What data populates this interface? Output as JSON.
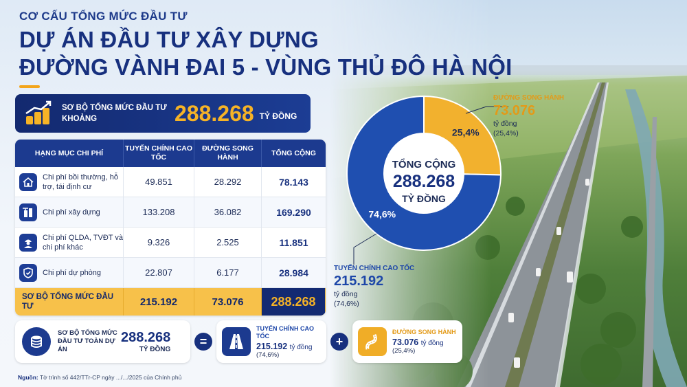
{
  "header": {
    "kicker": "CƠ CẤU TỔNG MỨC ĐẦU TƯ",
    "title_line1": "DỰ ÁN ĐẦU TƯ XÂY DỰNG",
    "title_line2": "ĐƯỜNG VÀNH ĐAI 5 - VÙNG THỦ ĐÔ HÀ NỘI"
  },
  "banner": {
    "label": "SƠ BỘ TỔNG MỨC ĐẦU TƯ KHOẢNG",
    "value": "288.268",
    "unit": "TỶ ĐỒNG"
  },
  "table": {
    "headers": [
      "HẠNG MỤC CHI PHÍ",
      "TUYẾN CHÍNH CAO TỐC",
      "ĐƯỜNG SONG HÀNH",
      "TỔNG CỘNG"
    ],
    "rows": [
      {
        "name": "Chi phí bồi thường, hỗ trợ, tái định cư",
        "main": "49.851",
        "parallel": "28.292",
        "total": "78.143",
        "icon": "house-icon"
      },
      {
        "name": "Chi phí xây dựng",
        "main": "133.208",
        "parallel": "36.082",
        "total": "169.290",
        "icon": "building-icon"
      },
      {
        "name": "Chi phí QLDA, TVĐT và chi phí khác",
        "main": "9.326",
        "parallel": "2.525",
        "total": "11.851",
        "icon": "engineer-icon"
      },
      {
        "name": "Chi phí dự phòng",
        "main": "22.807",
        "parallel": "6.177",
        "total": "28.984",
        "icon": "shield-icon"
      }
    ],
    "footer": {
      "name": "SƠ BỘ TỔNG MỨC ĐẦU TƯ",
      "main": "215.192",
      "parallel": "73.076",
      "total": "288.268"
    }
  },
  "chart_data": {
    "type": "pie",
    "title": "",
    "center_label": {
      "top": "TỔNG CỘNG",
      "value": "288.268",
      "bottom": "TỶ ĐỒNG"
    },
    "categories": [
      "ĐƯỜNG SONG HÀNH",
      "TUYẾN CHÍNH CAO TỐC"
    ],
    "values": [
      73.076,
      215.192
    ],
    "percent_labels": [
      "25,4%",
      "74,6%"
    ],
    "colors": [
      "#f2b12e",
      "#1f4fb0"
    ],
    "callouts": [
      {
        "title": "ĐƯỜNG SONG HÀNH",
        "value": "73.076",
        "unit": "tỷ đồng",
        "pct": "(25,4%)"
      },
      {
        "title": "TUYẾN CHÍNH CAO TỐC",
        "value": "215.192",
        "unit": "tỷ đồng",
        "pct": "(74,6%)"
      }
    ]
  },
  "equation": {
    "total_label": "SƠ BỘ TỔNG MỨC ĐẦU TƯ TOÀN DỰ ÁN",
    "total_value": "288.268",
    "total_unit": "TỶ ĐỒNG",
    "eq_sign": "=",
    "plus_sign": "+",
    "main_title": "TUYẾN CHÍNH CAO TỐC",
    "main_value": "215.192",
    "main_unit": "tỷ đồng",
    "main_pct": "(74,6%)",
    "par_title": "ĐƯỜNG SONG HÀNH",
    "par_value": "73.076",
    "par_unit": "tỷ đồng",
    "par_pct": "(25,4%)"
  },
  "source": {
    "label": "Nguồn:",
    "text": "Tờ trình số 442/TTr-CP ngày .../.../2025 của Chính phủ"
  },
  "colors": {
    "navy": "#17307e",
    "gold": "#f2b12e",
    "blue": "#1f4fb0"
  }
}
